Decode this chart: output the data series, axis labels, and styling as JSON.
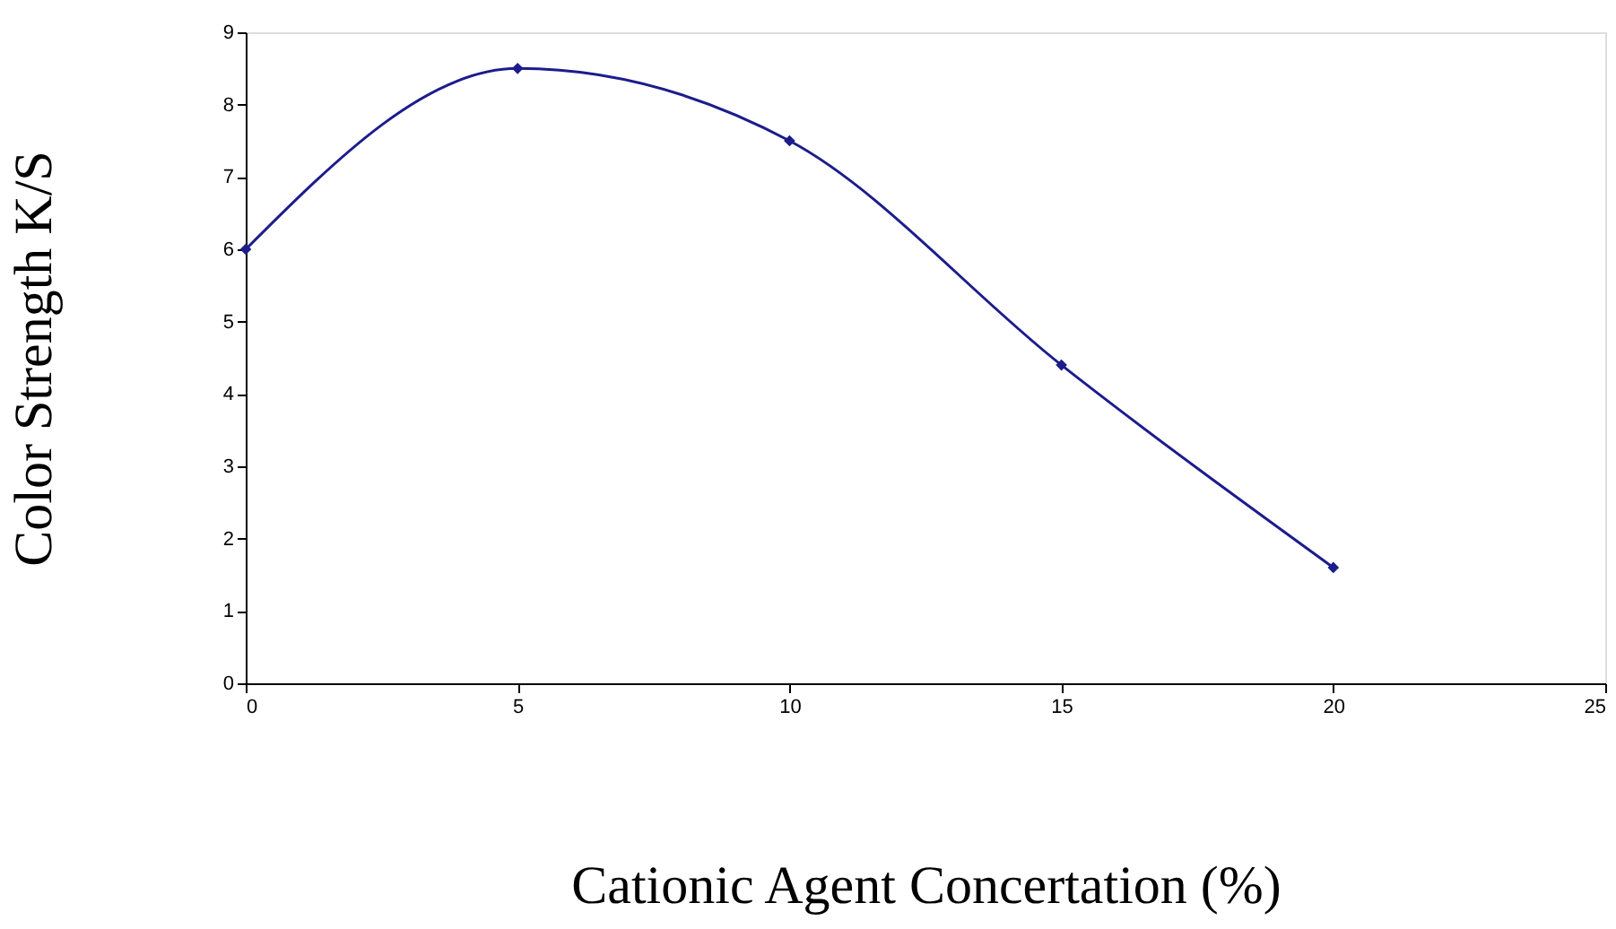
{
  "chart_data": {
    "type": "line",
    "xlabel": "Cationic Agent Concertation (%)",
    "ylabel": "Color Strength K/S",
    "x": [
      0,
      5,
      10,
      15,
      20
    ],
    "series": [
      {
        "color": "#1c1c8c",
        "values": [
          6.0,
          8.5,
          7.5,
          4.4,
          1.6
        ]
      }
    ],
    "xlim": [
      0,
      25
    ],
    "xticks": [
      0,
      5,
      10,
      15,
      20,
      25
    ],
    "ylim": [
      0,
      9
    ],
    "yticks": [
      0,
      1,
      2,
      3,
      4,
      5,
      6,
      7,
      8,
      9
    ],
    "grid": false,
    "marker": "diamond",
    "line_style": "solid"
  }
}
